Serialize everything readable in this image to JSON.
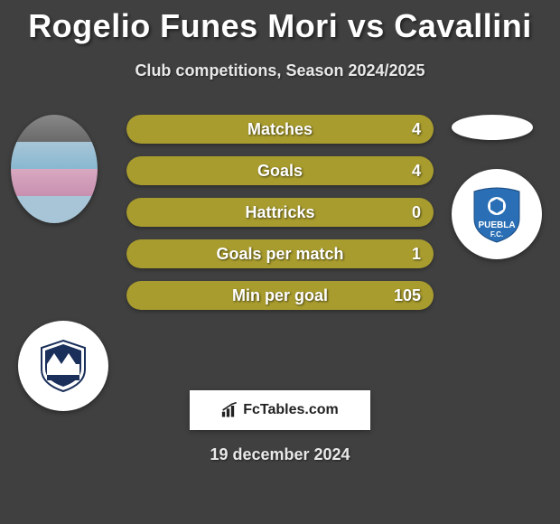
{
  "title": "Rogelio Funes Mori vs Cavallini",
  "subtitle": "Club competitions, Season 2024/2025",
  "date": "19 december 2024",
  "brand": "FcTables.com",
  "colors": {
    "left": "#a89c2e",
    "right": "#ffffff",
    "background": "#404040"
  },
  "bars": [
    {
      "label": "Matches",
      "left_pct": 100,
      "right_pct": 0,
      "left_val": "",
      "right_val": "4"
    },
    {
      "label": "Goals",
      "left_pct": 100,
      "right_pct": 0,
      "left_val": "",
      "right_val": "4"
    },
    {
      "label": "Hattricks",
      "left_pct": 100,
      "right_pct": 0,
      "left_val": "",
      "right_val": "0"
    },
    {
      "label": "Goals per match",
      "left_pct": 100,
      "right_pct": 0,
      "left_val": "",
      "right_val": "1"
    },
    {
      "label": "Min per goal",
      "left_pct": 100,
      "right_pct": 0,
      "left_val": "",
      "right_val": "105"
    }
  ],
  "clubs": {
    "left": {
      "name": "Monterrey",
      "primary": "#1a2f5a",
      "accent": "#ffffff"
    },
    "right": {
      "name": "Puebla",
      "primary": "#2a6fb5",
      "accent": "#ffffff"
    }
  }
}
